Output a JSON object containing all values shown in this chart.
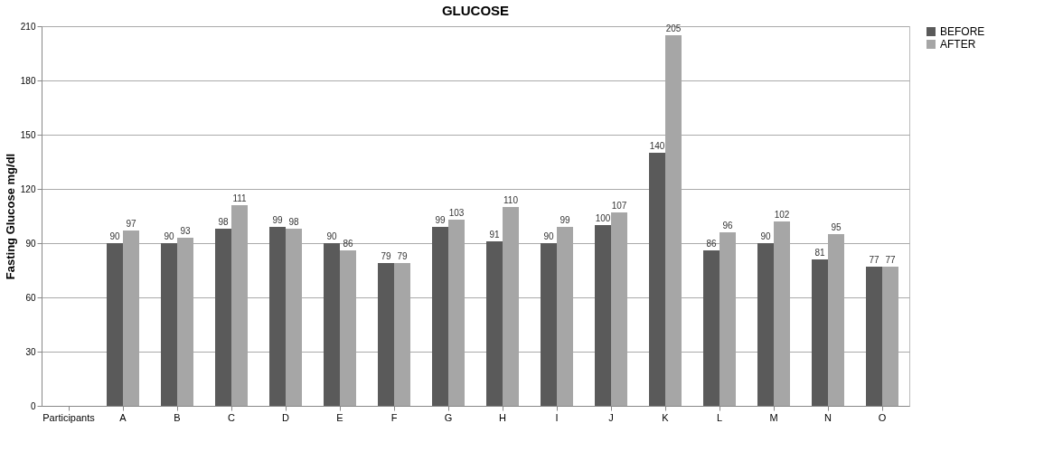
{
  "chart_data": {
    "type": "bar",
    "title": "GLUCOSE",
    "ylabel": "Fasting Glucose mg/dl",
    "categories": [
      "Participants",
      "A",
      "B",
      "C",
      "D",
      "E",
      "F",
      "G",
      "H",
      "I",
      "J",
      "K",
      "L",
      "M",
      "N",
      "O"
    ],
    "series": [
      {
        "name": "BEFORE",
        "color": "#5a5a5a",
        "values": [
          null,
          90,
          90,
          98,
          99,
          90,
          79,
          99,
          91,
          90,
          100,
          140,
          86,
          90,
          81,
          77
        ]
      },
      {
        "name": "AFTER",
        "color": "#a6a6a6",
        "values": [
          null,
          97,
          93,
          111,
          98,
          86,
          79,
          103,
          110,
          99,
          107,
          205,
          96,
          102,
          95,
          77
        ]
      }
    ],
    "ylim": [
      0,
      210
    ],
    "yticks": [
      0,
      30,
      60,
      90,
      120,
      150,
      180,
      210
    ],
    "grid": "y",
    "legend": "right",
    "data_labels": true
  }
}
